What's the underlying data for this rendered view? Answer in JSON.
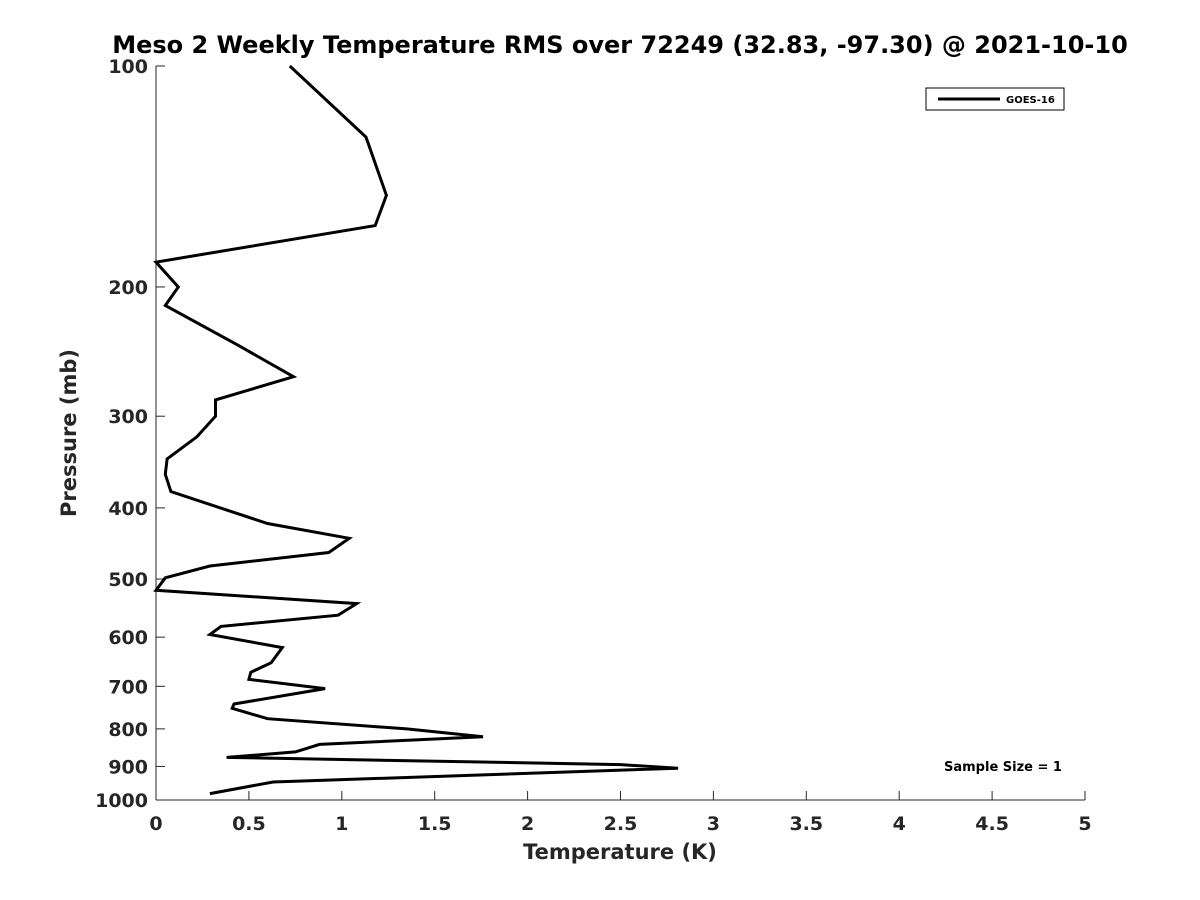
{
  "chart_data": {
    "type": "line",
    "title": "Meso 2 Weekly Temperature RMS over 72249 (32.83, -97.30) @ 2021-10-10",
    "xlabel": "Temperature (K)",
    "ylabel": "Pressure (mb)",
    "xlim": [
      0,
      5
    ],
    "ylim": [
      100,
      1000
    ],
    "y_scale": "log",
    "y_direction": "reversed",
    "x_ticks": [
      "0",
      "0.5",
      "1",
      "1.5",
      "2",
      "2.5",
      "3",
      "3.5",
      "4",
      "4.5",
      "5"
    ],
    "x_tick_values": [
      0,
      0.5,
      1,
      1.5,
      2,
      2.5,
      3,
      3.5,
      4,
      4.5,
      5
    ],
    "y_ticks": [
      "100",
      "200",
      "300",
      "400",
      "500",
      "600",
      "700",
      "800",
      "900",
      "1000"
    ],
    "y_tick_values": [
      100,
      200,
      300,
      400,
      500,
      600,
      700,
      800,
      900,
      1000
    ],
    "grid": false,
    "legend_position": "top-right",
    "annotation": "Sample Size = 1",
    "series": [
      {
        "name": "GOES-16",
        "color": "#000000",
        "x": [
          0.72,
          1.13,
          1.24,
          1.18,
          0.0,
          0.12,
          0.05,
          0.44,
          0.74,
          0.32,
          0.32,
          0.22,
          0.06,
          0.05,
          0.08,
          0.6,
          1.04,
          0.93,
          0.29,
          0.05,
          0.0,
          1.08,
          0.98,
          0.35,
          0.29,
          0.68,
          0.62,
          0.51,
          0.5,
          0.91,
          0.42,
          0.41,
          0.6,
          1.35,
          1.76,
          0.88,
          0.75,
          0.38,
          2.5,
          2.81,
          0.63,
          0.29
        ],
        "y": [
          100,
          125,
          150,
          165,
          185,
          200,
          212,
          240,
          265,
          285,
          300,
          320,
          343,
          360,
          380,
          420,
          440,
          460,
          480,
          498,
          518,
          540,
          560,
          580,
          595,
          620,
          650,
          670,
          685,
          705,
          740,
          750,
          775,
          800,
          820,
          840,
          860,
          875,
          895,
          905,
          945,
          980
        ]
      }
    ]
  }
}
